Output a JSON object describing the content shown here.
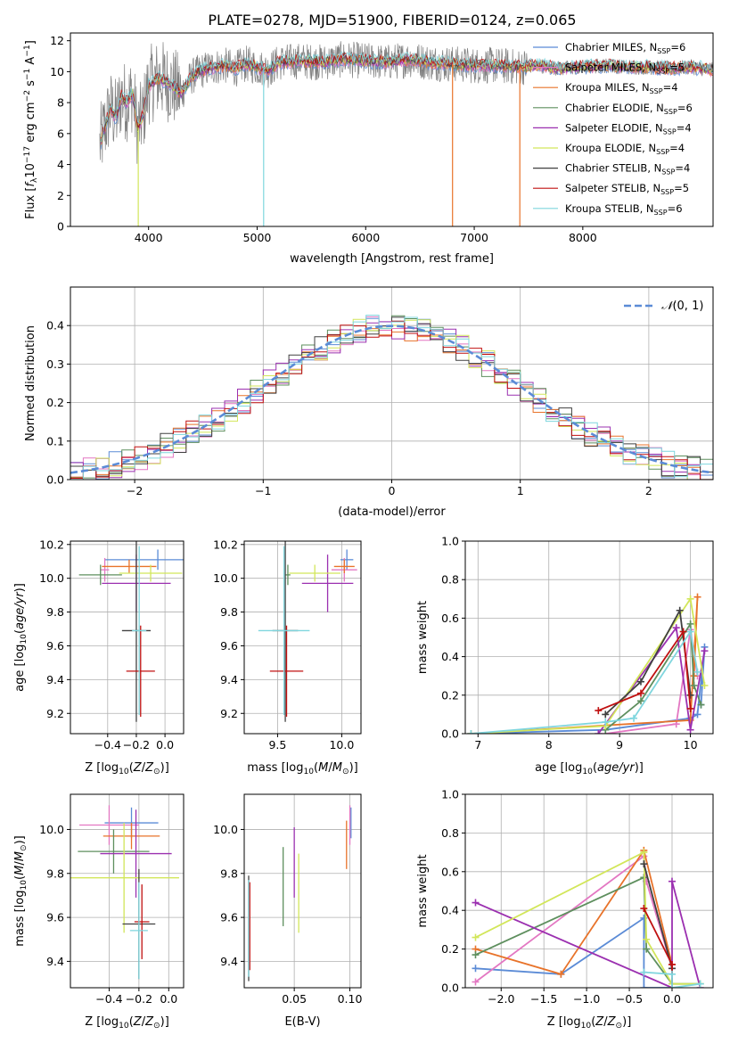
{
  "chart_data": [
    {
      "type": "line",
      "title": "PLATE=0278, MJD=51900, FIBERID=0124, z=0.065",
      "xlabel": "wavelength [Angstrom, rest frame]",
      "ylabel": "Flux [f_λ 10^{-17} erg cm^{-2} s^{-1} A^{-1}]",
      "xlim": [
        3280,
        9200
      ],
      "ylim": [
        0,
        12.5
      ],
      "x_ticks": [
        "4000",
        "5000",
        "6000",
        "7000",
        "8000"
      ],
      "y_ticks": [
        "0",
        "2",
        "4",
        "6",
        "8",
        "10",
        "12"
      ],
      "grid": false,
      "legend_position": "right",
      "spectrum_points": [
        [
          3550,
          5.2
        ],
        [
          3600,
          6.5
        ],
        [
          3650,
          7.6
        ],
        [
          3700,
          7.0
        ],
        [
          3750,
          8.4
        ],
        [
          3800,
          8.0
        ],
        [
          3850,
          8.6
        ],
        [
          3900,
          6.3
        ],
        [
          3950,
          7.2
        ],
        [
          4000,
          9.1
        ],
        [
          4100,
          9.6
        ],
        [
          4200,
          9.2
        ],
        [
          4300,
          8.6
        ],
        [
          4400,
          9.7
        ],
        [
          4500,
          10.1
        ],
        [
          4600,
          10.3
        ],
        [
          4700,
          10.4
        ],
        [
          4800,
          10.2
        ],
        [
          4900,
          10.5
        ],
        [
          5000,
          10.3
        ],
        [
          5100,
          10.1
        ],
        [
          5200,
          10.6
        ],
        [
          5400,
          10.7
        ],
        [
          5600,
          10.6
        ],
        [
          5800,
          10.8
        ],
        [
          6000,
          10.7
        ],
        [
          6200,
          10.6
        ],
        [
          6400,
          10.8
        ],
        [
          6600,
          10.6
        ],
        [
          6800,
          10.5
        ],
        [
          7000,
          10.4
        ],
        [
          7200,
          10.4
        ],
        [
          7400,
          10.3
        ],
        [
          7600,
          10.4
        ],
        [
          7800,
          10.2
        ],
        [
          8000,
          10.3
        ],
        [
          8200,
          10.4
        ],
        [
          8400,
          10.3
        ],
        [
          8600,
          10.3
        ],
        [
          8800,
          10.2
        ],
        [
          9000,
          10.3
        ],
        [
          9200,
          10.1
        ]
      ],
      "series": [
        {
          "name": "Chabrier MILES, N_SSP=6",
          "color": "#5b8bd6"
        },
        {
          "name": "Salpeter MILES, N_SSP=5",
          "color": "#e377c2"
        },
        {
          "name": "Kroupa MILES, N_SSP=4",
          "color": "#e8732a"
        },
        {
          "name": "Chabrier ELODIE, N_SSP=6",
          "color": "#5e8f5e"
        },
        {
          "name": "Salpeter ELODIE, N_SSP=4",
          "color": "#9b30b0"
        },
        {
          "name": "Kroupa ELODIE, N_SSP=4",
          "color": "#d2e65a"
        },
        {
          "name": "Chabrier STELIB, N_SSP=4",
          "color": "#404040"
        },
        {
          "name": "Salpeter STELIB, N_SSP=5",
          "color": "#c01010"
        },
        {
          "name": "Kroupa STELIB, N_SSP=6",
          "color": "#7fd6de"
        }
      ]
    },
    {
      "type": "line",
      "xlabel": "(data-model)/error",
      "ylabel": "Normed distribution",
      "xlim": [
        -2.5,
        2.5
      ],
      "ylim": [
        0,
        0.5
      ],
      "x_ticks": [
        "−2",
        "−1",
        "0",
        "1",
        "2"
      ],
      "y_ticks": [
        "0.0",
        "0.1",
        "0.2",
        "0.3",
        "0.4"
      ],
      "grid": true,
      "legend_position": "top-right",
      "legend": "𝒩(0,1)",
      "gaussian": {
        "mean": 0,
        "sigma": 1,
        "color": "#5b8bd6"
      },
      "histogram_bin_width": 0.1
    },
    {
      "type": "scatter",
      "xlabel": "Z [log10(Z/Z_sun)]",
      "ylabel": "age [log10(age/yr)]",
      "xlim": [
        -0.66,
        0.13
      ],
      "ylim": [
        9.08,
        10.22
      ],
      "x_ticks": [
        "−0.4",
        "−0.2",
        "0.0"
      ],
      "y_ticks": [
        "9.2",
        "9.4",
        "9.6",
        "9.8",
        "10.0",
        "10.2"
      ],
      "grid": true,
      "points": [
        {
          "x": -0.05,
          "y": 10.11,
          "xerr": 0.37,
          "yerr": 0.06,
          "color": "#5b8bd6"
        },
        {
          "x": -0.42,
          "y": 10.05,
          "xerr": 0.03,
          "yerr": 0.07,
          "color": "#e377c2"
        },
        {
          "x": -0.25,
          "y": 10.07,
          "xerr": 0.19,
          "yerr": 0.04,
          "color": "#e8732a"
        },
        {
          "x": -0.45,
          "y": 10.02,
          "xerr": 0.15,
          "yerr": 0.06,
          "color": "#5e8f5e"
        },
        {
          "x": -0.2,
          "y": 9.97,
          "xerr": 0.24,
          "yerr": 0.17,
          "color": "#9b30b0"
        },
        {
          "x": -0.1,
          "y": 10.03,
          "xerr": 0.22,
          "yerr": 0.05,
          "color": "#d2e65a"
        },
        {
          "x": -0.2,
          "y": 9.69,
          "xerr": 0.1,
          "yerr": 0.54,
          "color": "#404040"
        },
        {
          "x": -0.17,
          "y": 9.45,
          "xerr": 0.1,
          "yerr": 0.27,
          "color": "#c01010"
        },
        {
          "x": -0.18,
          "y": 9.69,
          "xerr": 0.05,
          "yerr": 0.5,
          "color": "#7fd6de"
        }
      ]
    },
    {
      "type": "scatter",
      "xlabel": "mass [log10(M/M_sun)]",
      "xlim": [
        9.24,
        10.15
      ],
      "ylim": [
        9.08,
        10.22
      ],
      "x_ticks": [
        "9.5",
        "10.0"
      ],
      "y_ticks": [
        "9.2",
        "9.4",
        "9.6",
        "9.8",
        "10.0",
        "10.2"
      ],
      "grid": true,
      "points": [
        {
          "x": 10.04,
          "y": 10.11,
          "xerr": 0.05,
          "yerr": 0.06,
          "color": "#5b8bd6"
        },
        {
          "x": 10.02,
          "y": 10.05,
          "xerr": 0.1,
          "yerr": 0.07,
          "color": "#e377c2"
        },
        {
          "x": 10.02,
          "y": 10.07,
          "xerr": 0.08,
          "yerr": 0.04,
          "color": "#e8732a"
        },
        {
          "x": 9.58,
          "y": 10.02,
          "xerr": 0.02,
          "yerr": 0.06,
          "color": "#5e8f5e"
        },
        {
          "x": 9.89,
          "y": 9.97,
          "xerr": 0.2,
          "yerr": 0.17,
          "color": "#9b30b0"
        },
        {
          "x": 9.79,
          "y": 10.03,
          "xerr": 0.2,
          "yerr": 0.05,
          "color": "#d2e65a"
        },
        {
          "x": 9.56,
          "y": 9.69,
          "xerr": 0.1,
          "yerr": 0.54,
          "color": "#404040"
        },
        {
          "x": 9.57,
          "y": 9.45,
          "xerr": 0.13,
          "yerr": 0.27,
          "color": "#c01010"
        },
        {
          "x": 9.55,
          "y": 9.69,
          "xerr": 0.2,
          "yerr": 0.5,
          "color": "#7fd6de"
        }
      ]
    },
    {
      "type": "line",
      "xlabel": "age [log10(age/yr)]",
      "ylabel": "mass weight",
      "xlim": [
        6.82,
        10.32
      ],
      "ylim": [
        0,
        1
      ],
      "x_ticks": [
        "7",
        "8",
        "9",
        "10"
      ],
      "y_ticks": [
        "0.0",
        "0.2",
        "0.4",
        "0.6",
        "0.8",
        "1.0"
      ],
      "grid": true,
      "series": [
        {
          "color": "#5b8bd6",
          "points": [
            [
              6.9,
              0.0
            ],
            [
              8.8,
              0.02
            ],
            [
              10.0,
              0.08
            ],
            [
              10.1,
              0.1
            ],
            [
              10.2,
              0.45
            ],
            [
              10.15,
              0.15
            ]
          ]
        },
        {
          "color": "#e377c2",
          "points": [
            [
              8.8,
              0.0
            ],
            [
              9.8,
              0.05
            ],
            [
              10.0,
              0.54
            ],
            [
              10.1,
              0.3
            ]
          ]
        },
        {
          "color": "#e8732a",
          "points": [
            [
              6.9,
              0.0
            ],
            [
              10.0,
              0.07
            ],
            [
              10.1,
              0.71
            ],
            [
              10.05,
              0.3
            ]
          ]
        },
        {
          "color": "#5e8f5e",
          "points": [
            [
              8.8,
              0.02
            ],
            [
              9.3,
              0.17
            ],
            [
              10.0,
              0.57
            ],
            [
              10.05,
              0.25
            ],
            [
              10.15,
              0.15
            ]
          ]
        },
        {
          "color": "#9b30b0",
          "points": [
            [
              8.7,
              0.0
            ],
            [
              9.8,
              0.55
            ],
            [
              10.0,
              0.02
            ],
            [
              10.2,
              0.43
            ]
          ]
        },
        {
          "color": "#d2e65a",
          "points": [
            [
              6.9,
              0.0
            ],
            [
              8.8,
              0.04
            ],
            [
              10.0,
              0.7
            ],
            [
              10.2,
              0.25
            ]
          ]
        },
        {
          "color": "#404040",
          "points": [
            [
              8.8,
              0.1
            ],
            [
              9.3,
              0.27
            ],
            [
              9.85,
              0.64
            ],
            [
              10.0,
              0.2
            ]
          ]
        },
        {
          "color": "#c01010",
          "points": [
            [
              8.7,
              0.12
            ],
            [
              9.3,
              0.21
            ],
            [
              9.9,
              0.53
            ],
            [
              10.0,
              0.13
            ]
          ]
        },
        {
          "color": "#7fd6de",
          "points": [
            [
              6.9,
              0.0
            ],
            [
              8.8,
              0.06
            ],
            [
              9.2,
              0.08
            ],
            [
              10.0,
              0.53
            ],
            [
              10.1,
              0.32
            ]
          ]
        }
      ]
    },
    {
      "type": "scatter",
      "xlabel": "Z [log10(Z/Z_sun)]",
      "ylabel": "mass [log10(M/M_sun)]",
      "xlim": [
        -0.66,
        0.1
      ],
      "ylim": [
        9.28,
        10.16
      ],
      "x_ticks": [
        "−0.4",
        "−0.2",
        "0.0"
      ],
      "y_ticks": [
        "9.4",
        "9.6",
        "9.8",
        "10.0"
      ],
      "grid": true,
      "points": [
        {
          "x": -0.25,
          "y": 10.03,
          "xerr": 0.18,
          "yerr": 0.07,
          "color": "#5b8bd6"
        },
        {
          "x": -0.4,
          "y": 10.02,
          "xerr": 0.2,
          "yerr": 0.09,
          "color": "#e377c2"
        },
        {
          "x": -0.25,
          "y": 9.97,
          "xerr": 0.19,
          "yerr": 0.06,
          "color": "#e8732a"
        },
        {
          "x": -0.37,
          "y": 9.9,
          "xerr": 0.24,
          "yerr": 0.1,
          "color": "#5e8f5e"
        },
        {
          "x": -0.22,
          "y": 9.89,
          "xerr": 0.24,
          "yerr": 0.2,
          "color": "#9b30b0"
        },
        {
          "x": -0.3,
          "y": 9.78,
          "xerr": 0.37,
          "yerr": 0.25,
          "color": "#d2e65a"
        },
        {
          "x": -0.2,
          "y": 9.57,
          "xerr": 0.11,
          "yerr": 0.25,
          "color": "#404040"
        },
        {
          "x": -0.18,
          "y": 9.58,
          "xerr": 0.05,
          "yerr": 0.17,
          "color": "#c01010"
        },
        {
          "x": -0.2,
          "y": 9.54,
          "xerr": 0.06,
          "yerr": 0.22,
          "color": "#7fd6de"
        }
      ]
    },
    {
      "type": "scatter",
      "xlabel": "E(B-V)",
      "xlim": [
        0.005,
        0.11
      ],
      "ylim": [
        9.28,
        10.16
      ],
      "x_ticks": [
        "0.05",
        "0.10"
      ],
      "y_ticks": [
        "9.4",
        "9.6",
        "9.8",
        "10.0"
      ],
      "grid": true,
      "points": [
        {
          "x": 0.101,
          "y": 10.03,
          "yerr": 0.07,
          "color": "#5b8bd6"
        },
        {
          "x": 0.1,
          "y": 10.02,
          "yerr": 0.09,
          "color": "#e377c2"
        },
        {
          "x": 0.097,
          "y": 9.93,
          "yerr": 0.11,
          "color": "#e8732a"
        },
        {
          "x": 0.04,
          "y": 9.74,
          "yerr": 0.18,
          "color": "#5e8f5e"
        },
        {
          "x": 0.05,
          "y": 9.85,
          "yerr": 0.16,
          "color": "#9b30b0"
        },
        {
          "x": 0.054,
          "y": 9.71,
          "yerr": 0.18,
          "color": "#d2e65a"
        },
        {
          "x": 0.009,
          "y": 9.55,
          "yerr": 0.24,
          "color": "#404040"
        },
        {
          "x": 0.01,
          "y": 9.56,
          "yerr": 0.2,
          "color": "#c01010"
        },
        {
          "x": 0.009,
          "y": 9.55,
          "yerr": 0.22,
          "color": "#7fd6de"
        }
      ]
    },
    {
      "type": "line",
      "xlabel": "Z [log10(Z/Z_sun)]",
      "ylabel": "mass weight",
      "xlim": [
        -2.42,
        0.48
      ],
      "ylim": [
        0,
        1
      ],
      "x_ticks": [
        "−2.0",
        "−1.5",
        "−1.0",
        "−0.5",
        "0.0"
      ],
      "y_ticks": [
        "0.0",
        "0.2",
        "0.4",
        "0.6",
        "0.8",
        "1.0"
      ],
      "grid": true,
      "series": [
        {
          "color": "#5b8bd6",
          "points": [
            [
              -2.3,
              0.1
            ],
            [
              -1.3,
              0.07
            ],
            [
              -0.33,
              0.36
            ],
            [
              -0.33,
              0.0
            ],
            [
              0.0,
              0.0
            ]
          ]
        },
        {
          "color": "#e377c2",
          "points": [
            [
              -2.3,
              0.03
            ],
            [
              -0.33,
              0.68
            ],
            [
              -0.3,
              0.55
            ],
            [
              0.0,
              0.1
            ]
          ]
        },
        {
          "color": "#e8732a",
          "points": [
            [
              -2.3,
              0.2
            ],
            [
              -1.3,
              0.07
            ],
            [
              -0.33,
              0.71
            ],
            [
              0.0,
              0.12
            ]
          ]
        },
        {
          "color": "#5e8f5e",
          "points": [
            [
              -2.3,
              0.17
            ],
            [
              -0.33,
              0.57
            ],
            [
              -0.3,
              0.2
            ],
            [
              0.0,
              0.02
            ],
            [
              0.33,
              0.02
            ]
          ]
        },
        {
          "color": "#9b30b0",
          "points": [
            [
              -2.3,
              0.44
            ],
            [
              0.0,
              0.0
            ],
            [
              0.0,
              0.55
            ],
            [
              0.33,
              0.0
            ]
          ]
        },
        {
          "color": "#d2e65a",
          "points": [
            [
              -2.3,
              0.26
            ],
            [
              -0.33,
              0.7
            ],
            [
              -0.3,
              0.25
            ],
            [
              0.0,
              0.02
            ],
            [
              0.33,
              0.02
            ]
          ]
        },
        {
          "color": "#404040",
          "points": [
            [
              -0.33,
              0.64
            ],
            [
              0.0,
              0.1
            ],
            [
              0.0,
              0.0
            ]
          ]
        },
        {
          "color": "#c01010",
          "points": [
            [
              -0.33,
              0.41
            ],
            [
              0.0,
              0.12
            ],
            [
              0.0,
              0.0
            ]
          ]
        },
        {
          "color": "#7fd6de",
          "points": [
            [
              -0.33,
              0.08
            ],
            [
              0.0,
              0.07
            ],
            [
              0.0,
              0.0
            ],
            [
              0.33,
              0.02
            ]
          ]
        }
      ]
    }
  ]
}
